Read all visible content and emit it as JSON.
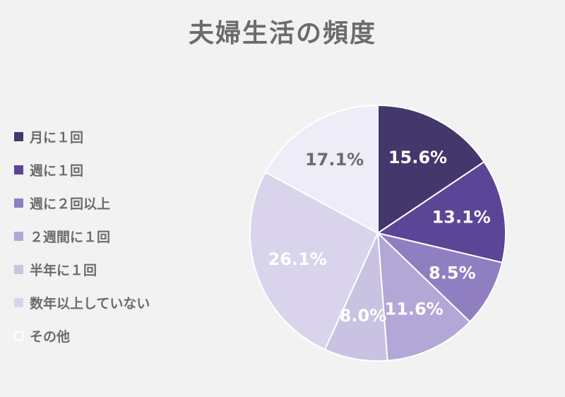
{
  "chart_data": {
    "type": "pie",
    "title": "夫婦生活の頻度",
    "legend_position": "left",
    "slices": [
      {
        "label": "月に１回",
        "value": 15.6,
        "value_label": "15.6%",
        "color": "#43376b",
        "label_color": "#ffffff"
      },
      {
        "label": "週に１回",
        "value": 13.1,
        "value_label": "13.1%",
        "color": "#5b4596",
        "label_color": "#ffffff"
      },
      {
        "label": "週に２回以上",
        "value": 8.5,
        "value_label": "8.5%",
        "color": "#8f7fc0",
        "label_color": "#ffffff"
      },
      {
        "label": "２週間に１回",
        "value": 11.6,
        "value_label": "11.6%",
        "color": "#b2a7d6",
        "label_color": "#ffffff"
      },
      {
        "label": "半年に１回",
        "value": 8.0,
        "value_label": "8.0%",
        "color": "#c9c2e3",
        "label_color": "#ffffff"
      },
      {
        "label": "数年以上していない",
        "value": 26.1,
        "value_label": "26.1%",
        "color": "#d9d4ec",
        "label_color": "#ffffff"
      },
      {
        "label": "その他",
        "value": 17.1,
        "value_label": "17.1%",
        "color": "#eeecf7",
        "label_color": "#6b6b6b"
      }
    ]
  }
}
